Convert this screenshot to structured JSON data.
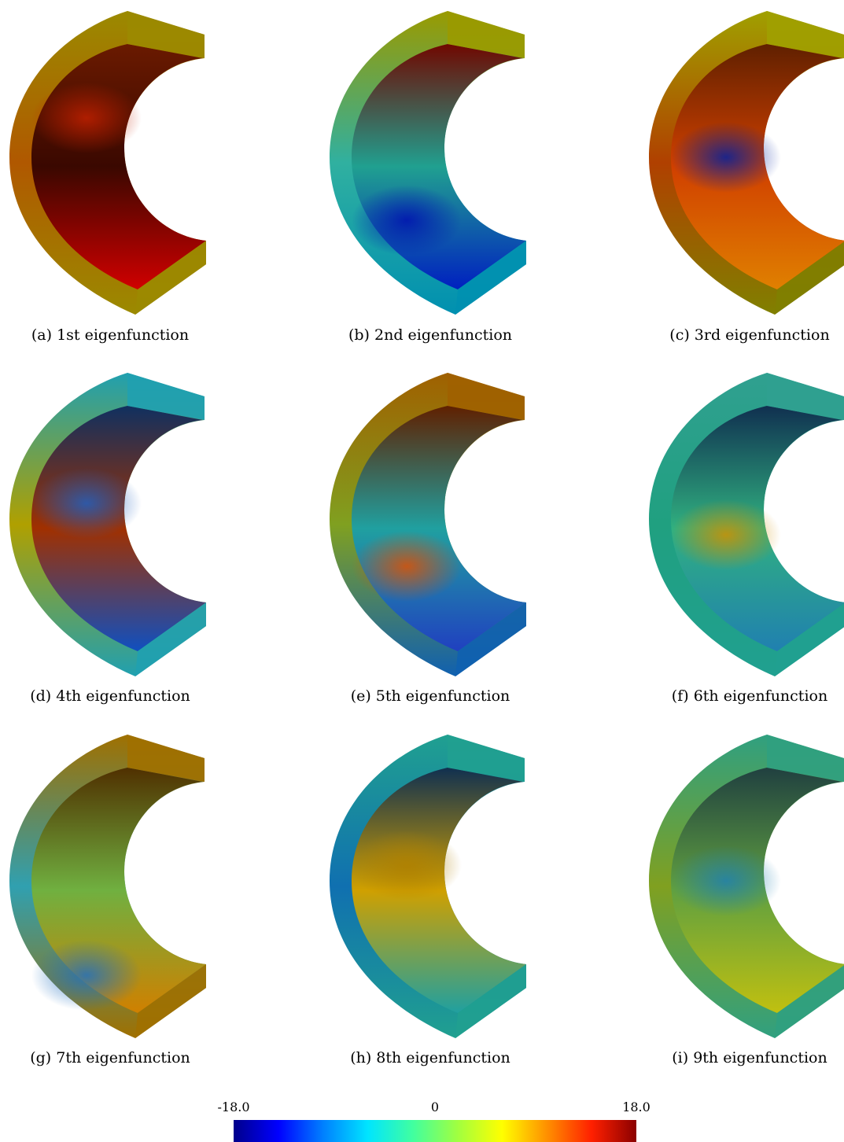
{
  "panels": [
    {
      "caption": "(a) 1st eigenfunction"
    },
    {
      "caption": "(b) 2nd eigenfunction"
    },
    {
      "caption": "(c) 3rd eigenfunction"
    },
    {
      "caption": "(d) 4th eigenfunction"
    },
    {
      "caption": "(e) 5th eigenfunction"
    },
    {
      "caption": "(f) 6th eigenfunction"
    },
    {
      "caption": "(g) 7th eigenfunction"
    },
    {
      "caption": "(h) 8th eigenfunction"
    },
    {
      "caption": "(i) 9th eigenfunction"
    }
  ],
  "colorbar": {
    "min_label": "-18.0",
    "mid_label": "0",
    "max_label": "18.0",
    "colors": [
      "#00008b",
      "#0000ff",
      "#0080ff",
      "#00e5ff",
      "#40ffa0",
      "#a0ff40",
      "#ffff00",
      "#ff9000",
      "#ff2000",
      "#8b0000"
    ]
  }
}
